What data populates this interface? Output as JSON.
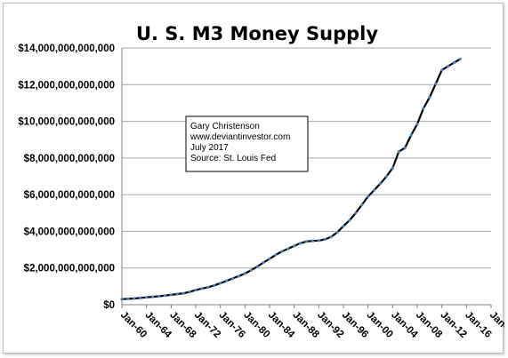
{
  "chart_data": {
    "type": "line",
    "title": "U. S. M3 Money Supply",
    "xlabel": "",
    "ylabel": "",
    "x_tick_labels": [
      "Jan-60",
      "Jan-64",
      "Jan-68",
      "Jan-72",
      "Jan-76",
      "Jan-80",
      "Jan-84",
      "Jan-88",
      "Jan-92",
      "Jan-96",
      "Jan-00",
      "Jan-04",
      "Jan-08",
      "Jan-12",
      "Jan-16",
      "Jan-20"
    ],
    "x_range": [
      1960,
      2020
    ],
    "y_tick_labels": [
      "$0",
      "$2,000,000,000,000",
      "$4,000,000,000,000",
      "$6,000,000,000,000",
      "$8,000,000,000,000",
      "$10,000,000,000,000",
      "$12,000,000,000,000",
      "$14,000,000,000,000"
    ],
    "ylim": [
      0,
      14000000000000
    ],
    "grid": "horizontal",
    "line_color": "#000000",
    "marker_color": "#4f81bd",
    "annotation": {
      "lines": [
        "Gary Christenson",
        "www.deviantinvestor.com",
        "July 2017",
        "Source:  St. Louis Fed"
      ]
    },
    "series": [
      {
        "x": [
          1960,
          1961,
          1962,
          1963,
          1964,
          1965,
          1966,
          1967,
          1968,
          1969,
          1970,
          1971,
          1972,
          1973,
          1974,
          1975,
          1976,
          1977,
          1978,
          1979,
          1980,
          1981,
          1982,
          1983,
          1984,
          1985,
          1986,
          1987,
          1988,
          1989,
          1990,
          1991,
          1992,
          1993,
          1994,
          1995,
          1996,
          1997,
          1998,
          1999,
          2000,
          2001,
          2002,
          2003,
          2004,
          2005,
          2006,
          2007,
          2008,
          2009,
          2010,
          2011,
          2012,
          2013,
          2014,
          2015
        ],
        "values": [
          300000000000,
          320000000000,
          340000000000,
          370000000000,
          400000000000,
          430000000000,
          460000000000,
          500000000000,
          540000000000,
          580000000000,
          620000000000,
          700000000000,
          800000000000,
          880000000000,
          950000000000,
          1050000000000,
          1170000000000,
          1300000000000,
          1430000000000,
          1560000000000,
          1700000000000,
          1880000000000,
          2080000000000,
          2300000000000,
          2500000000000,
          2720000000000,
          2900000000000,
          3050000000000,
          3200000000000,
          3350000000000,
          3450000000000,
          3480000000000,
          3500000000000,
          3560000000000,
          3700000000000,
          3950000000000,
          4280000000000,
          4600000000000,
          5000000000000,
          5450000000000,
          5900000000000,
          6250000000000,
          6600000000000,
          7000000000000,
          7450000000000,
          8350000000000,
          8550000000000,
          9250000000000,
          9850000000000,
          10700000000000,
          11300000000000,
          12050000000000,
          12800000000000,
          13000000000000,
          13200000000000,
          13400000000000
        ]
      }
    ]
  }
}
